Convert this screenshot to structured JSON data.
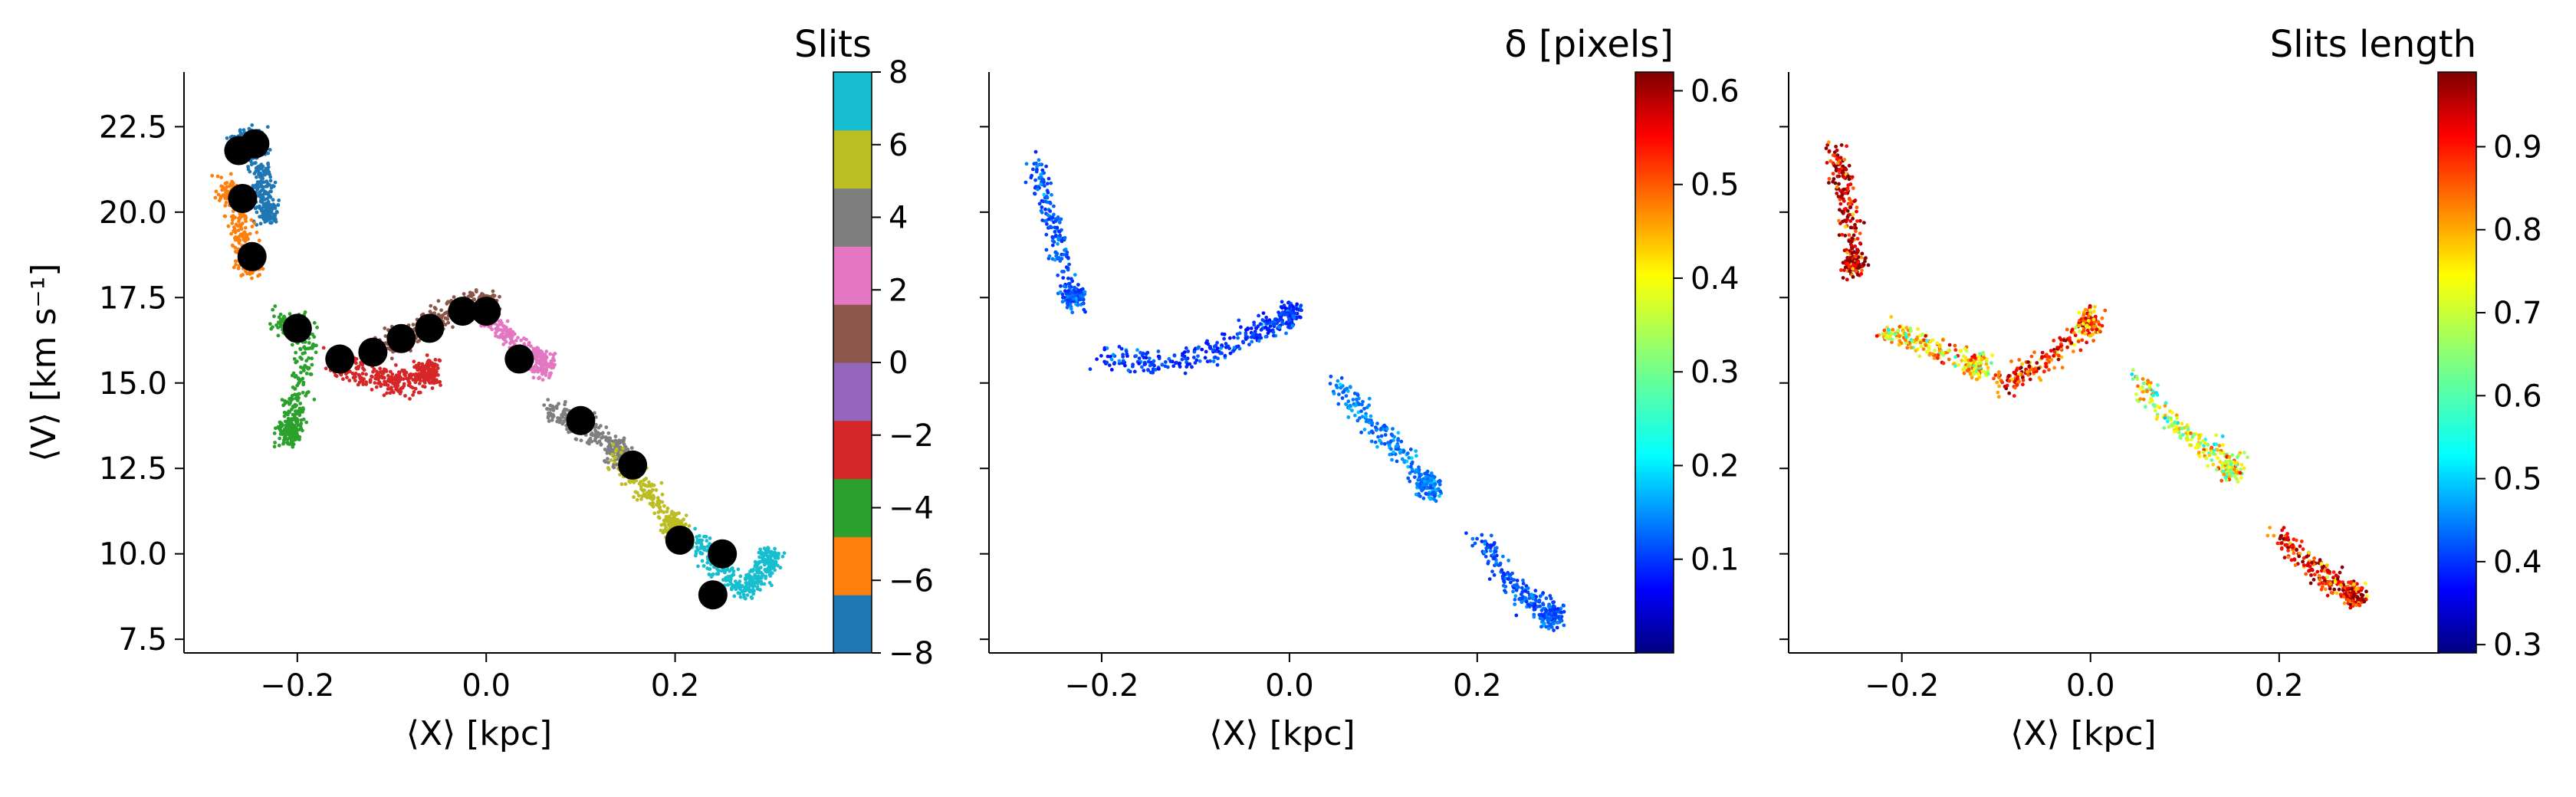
{
  "chart_data": [
    {
      "type": "scatter",
      "panel": "left",
      "xlabel": "⟨X⟩ [kpc]",
      "ylabel": "⟨V⟩ [km s⁻¹]",
      "xlim": [
        -0.32,
        0.37
      ],
      "ylim": [
        7.1,
        24.1
      ],
      "xticks": [
        -0.2,
        0.0,
        0.2
      ],
      "xtick_labels": [
        "−0.2",
        "0.0",
        "0.2"
      ],
      "yticks": [
        7.5,
        10.0,
        12.5,
        15.0,
        17.5,
        20.0,
        22.5
      ],
      "ytick_labels": [
        "7.5",
        "10.0",
        "12.5",
        "15.0",
        "17.5",
        "20.0",
        "22.5"
      ],
      "colorbar": {
        "title": "Slits",
        "range": [
          -8,
          8
        ],
        "ticks": [
          -8,
          -6,
          -4,
          -2,
          0,
          2,
          4,
          6,
          8
        ],
        "tick_labels": [
          "−8",
          "−6",
          "−4",
          "−2",
          "0",
          "2",
          "4",
          "6",
          "8"
        ],
        "colors": [
          "#1f77b4",
          "#ff7f0e",
          "#2ca02c",
          "#d62728",
          "#9467bd",
          "#8c564b",
          "#e377c2",
          "#7f7f7f",
          "#bcbd22",
          "#17becf"
        ]
      },
      "color_by": "slit",
      "point_clusters": [
        {
          "slit": "blue",
          "x": [
            -0.265,
            -0.255,
            -0.245,
            -0.238,
            -0.232
          ],
          "y": [
            21.8,
            22.0,
            22.2,
            21.0,
            20.0
          ]
        },
        {
          "slit": "orange",
          "x": [
            -0.28,
            -0.265,
            -0.255,
            -0.25
          ],
          "y": [
            20.8,
            20.3,
            19.0,
            18.5
          ]
        },
        {
          "slit": "green",
          "x": [
            -0.22,
            -0.19,
            -0.2,
            -0.21
          ],
          "y": [
            16.8,
            16.6,
            14.5,
            13.5
          ]
        },
        {
          "slit": "red",
          "x": [
            -0.16,
            -0.12,
            -0.09,
            -0.06
          ],
          "y": [
            15.6,
            15.2,
            15.0,
            15.3
          ]
        },
        {
          "slit": "brown",
          "x": [
            -0.12,
            -0.07,
            -0.03,
            0.0
          ],
          "y": [
            16.0,
            16.6,
            17.2,
            17.3
          ]
        },
        {
          "slit": "pink",
          "x": [
            0.0,
            0.03,
            0.06
          ],
          "y": [
            17.0,
            16.2,
            15.5
          ]
        },
        {
          "slit": "gray",
          "x": [
            0.07,
            0.1,
            0.14
          ],
          "y": [
            14.2,
            13.8,
            13.0
          ]
        },
        {
          "slit": "olive",
          "x": [
            0.14,
            0.17,
            0.2
          ],
          "y": [
            12.8,
            11.8,
            10.8
          ]
        },
        {
          "slit": "cyan",
          "x": [
            0.22,
            0.25,
            0.28,
            0.3
          ],
          "y": [
            10.5,
            9.5,
            8.9,
            9.8
          ]
        }
      ],
      "black_points": {
        "x": [
          -0.262,
          -0.245,
          -0.258,
          -0.248,
          -0.2,
          -0.155,
          -0.12,
          -0.09,
          -0.06,
          -0.025,
          0.0,
          0.035,
          0.1,
          0.155,
          0.205,
          0.25,
          0.24
        ],
        "y": [
          21.8,
          22.0,
          20.4,
          18.7,
          16.6,
          15.7,
          15.9,
          16.3,
          16.6,
          17.1,
          17.1,
          15.7,
          13.9,
          12.6,
          10.4,
          10.0,
          8.8
        ]
      }
    },
    {
      "type": "scatter",
      "panel": "middle",
      "xlabel": "⟨X⟩ [kpc]",
      "xlim": [
        -0.32,
        0.37
      ],
      "ylim": [
        7.1,
        24.1
      ],
      "xticks": [
        -0.2,
        0.0,
        0.2
      ],
      "xtick_labels": [
        "−0.2",
        "0.0",
        "0.2"
      ],
      "yticks": [
        7.5,
        10.0,
        12.5,
        15.0,
        17.5,
        20.0,
        22.5
      ],
      "colorbar": {
        "title": "δ [pixels]",
        "range": [
          0.0,
          0.62
        ],
        "ticks": [
          0.1,
          0.2,
          0.3,
          0.4,
          0.5,
          0.6
        ],
        "tick_labels": [
          "0.1",
          "0.2",
          "0.3",
          "0.4",
          "0.5",
          "0.6"
        ],
        "colormap": "jet"
      },
      "color_by": "delta",
      "point_clusters": [
        {
          "x": [
            -0.27,
            -0.25,
            -0.23
          ],
          "y": [
            21.5,
            19.5,
            17.5
          ],
          "value": 0.1
        },
        {
          "x": [
            -0.2,
            -0.12,
            -0.05,
            0.0
          ],
          "y": [
            15.8,
            15.5,
            16.3,
            17.0
          ],
          "value": 0.08
        },
        {
          "x": [
            0.05,
            0.1,
            0.15
          ],
          "y": [
            15.0,
            13.5,
            12.0
          ],
          "value": 0.12
        },
        {
          "x": [
            0.2,
            0.24,
            0.28
          ],
          "y": [
            10.5,
            9.0,
            8.2
          ],
          "value": 0.1
        }
      ]
    },
    {
      "type": "scatter",
      "panel": "right",
      "xlabel": "⟨X⟩ [kpc]",
      "xlim": [
        -0.32,
        0.37
      ],
      "ylim": [
        7.1,
        24.1
      ],
      "xticks": [
        -0.2,
        0.0,
        0.2
      ],
      "xtick_labels": [
        "−0.2",
        "0.0",
        "0.2"
      ],
      "yticks": [
        7.5,
        10.0,
        12.5,
        15.0,
        17.5,
        20.0,
        22.5
      ],
      "colorbar": {
        "title": "Slits length",
        "range": [
          0.29,
          0.99
        ],
        "ticks": [
          0.3,
          0.4,
          0.5,
          0.6,
          0.7,
          0.8,
          0.9
        ],
        "tick_labels": [
          "0.3",
          "0.4",
          "0.5",
          "0.6",
          "0.7",
          "0.8",
          "0.9"
        ],
        "colormap": "jet"
      },
      "color_by": "slit_length",
      "point_clusters": [
        {
          "x": [
            -0.27,
            -0.26,
            -0.25
          ],
          "y": [
            21.8,
            20.5,
            18.5
          ],
          "value": 0.95
        },
        {
          "x": [
            -0.22,
            -0.18,
            -0.12
          ],
          "y": [
            16.5,
            16.2,
            15.5
          ],
          "value": 0.75
        },
        {
          "x": [
            -0.1,
            -0.05,
            0.0
          ],
          "y": [
            15.0,
            15.5,
            16.8
          ],
          "value": 0.85
        },
        {
          "x": [
            0.05,
            0.1,
            0.15
          ],
          "y": [
            15.0,
            13.5,
            12.5
          ],
          "value": 0.7
        },
        {
          "x": [
            0.2,
            0.24,
            0.28
          ],
          "y": [
            10.5,
            9.5,
            8.8
          ],
          "value": 0.9
        }
      ]
    }
  ]
}
